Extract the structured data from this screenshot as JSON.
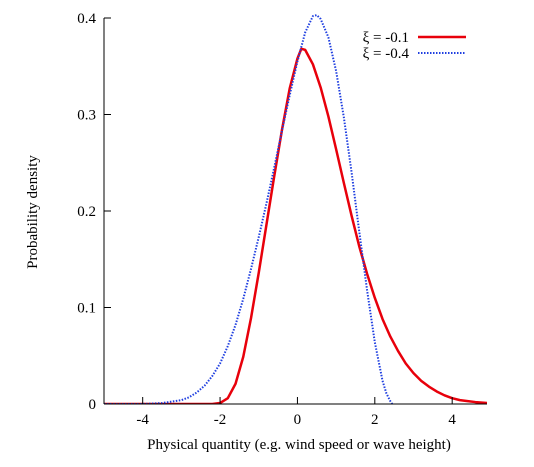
{
  "chart_data": {
    "type": "line",
    "title": "",
    "xlabel": "Physical quantity (e.g. wind speed or wave height)",
    "ylabel": "Probability density",
    "xlim": [
      -5,
      4.9
    ],
    "ylim": [
      0,
      0.4
    ],
    "grid": false,
    "legend_position": "top-right",
    "x_ticks": [
      -4,
      -2,
      0,
      2,
      4
    ],
    "x_tick_labels": [
      "-4",
      "-2",
      "0",
      "2",
      "4"
    ],
    "y_ticks": [
      0,
      0.1,
      0.2,
      0.3,
      0.4
    ],
    "y_tick_labels": [
      "0",
      "0.1",
      "0.2",
      "0.3",
      "0.4"
    ],
    "series": [
      {
        "name": "ξ = -0.1",
        "color": "#e8000b",
        "style": "solid",
        "x": [
          -5.0,
          -3.0,
          -2.5,
          -2.2,
          -2.0,
          -1.8,
          -1.6,
          -1.4,
          -1.2,
          -1.0,
          -0.8,
          -0.6,
          -0.4,
          -0.2,
          0.0,
          0.1,
          0.2,
          0.4,
          0.6,
          0.8,
          1.0,
          1.2,
          1.4,
          1.6,
          1.8,
          2.0,
          2.2,
          2.4,
          2.6,
          2.8,
          3.0,
          3.2,
          3.4,
          3.6,
          3.8,
          4.0,
          4.2,
          4.4,
          4.6,
          4.9
        ],
        "y": [
          0.0,
          0.0,
          0.0,
          0.0,
          0.001,
          0.006,
          0.021,
          0.049,
          0.089,
          0.136,
          0.186,
          0.236,
          0.284,
          0.327,
          0.358,
          0.368,
          0.367,
          0.352,
          0.328,
          0.298,
          0.264,
          0.229,
          0.195,
          0.163,
          0.135,
          0.11,
          0.088,
          0.07,
          0.055,
          0.042,
          0.032,
          0.024,
          0.018,
          0.013,
          0.009,
          0.006,
          0.004,
          0.003,
          0.002,
          0.001
        ]
      },
      {
        "name": "ξ = -0.4",
        "color": "#1f3fe0",
        "style": "dotted",
        "x": [
          -5.0,
          -4.5,
          -4.0,
          -3.5,
          -3.0,
          -2.8,
          -2.6,
          -2.4,
          -2.2,
          -2.0,
          -1.8,
          -1.6,
          -1.4,
          -1.2,
          -1.0,
          -0.8,
          -0.6,
          -0.4,
          -0.2,
          0.0,
          0.2,
          0.4,
          0.5,
          0.6,
          0.8,
          1.0,
          1.2,
          1.4,
          1.6,
          1.8,
          2.0,
          2.2,
          2.3,
          2.4,
          2.45
        ],
        "y": [
          0.0,
          0.0,
          0.0,
          0.001,
          0.004,
          0.007,
          0.012,
          0.019,
          0.029,
          0.042,
          0.06,
          0.082,
          0.109,
          0.14,
          0.173,
          0.208,
          0.245,
          0.283,
          0.32,
          0.355,
          0.385,
          0.402,
          0.403,
          0.399,
          0.38,
          0.345,
          0.297,
          0.24,
          0.178,
          0.118,
          0.064,
          0.024,
          0.011,
          0.003,
          0.0
        ]
      }
    ]
  }
}
